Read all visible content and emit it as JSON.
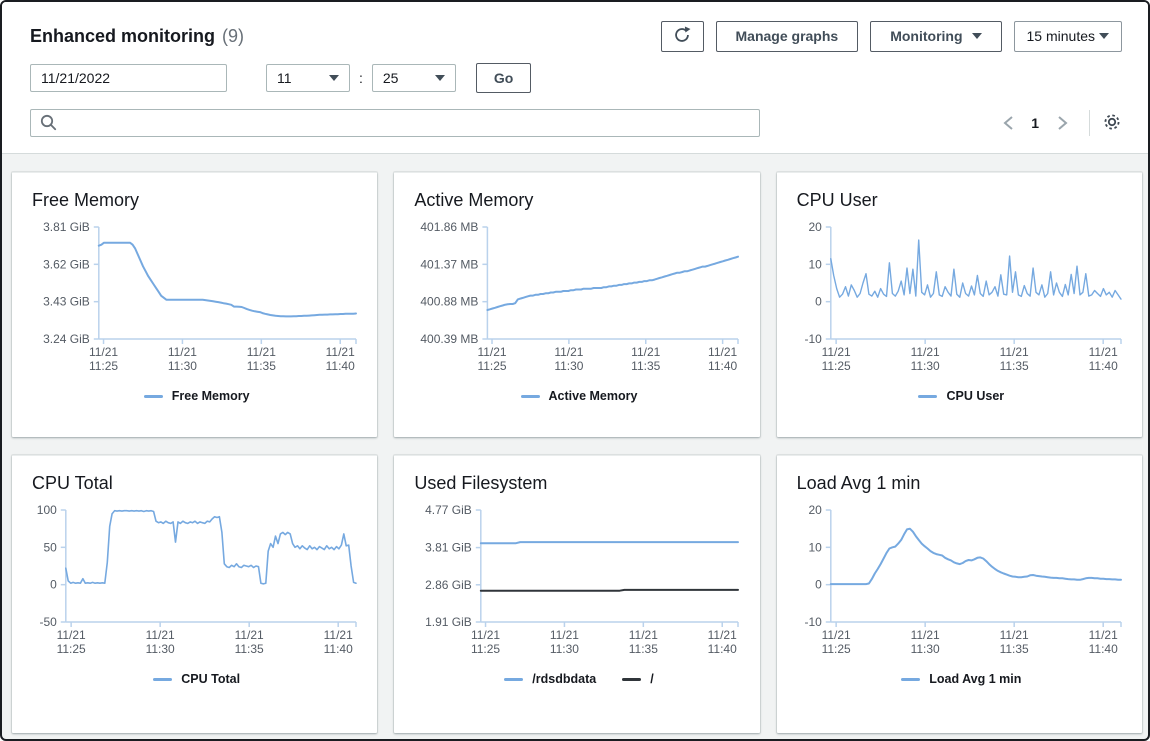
{
  "header": {
    "title": "Enhanced monitoring",
    "count": "(9)",
    "refresh_icon": "refresh-icon",
    "manage_graphs_label": "Manage graphs",
    "monitoring_label": "Monitoring",
    "time_range_label": "15 minutes",
    "date_value": "11/21/2022",
    "hour_value": "11",
    "time_separator": ":",
    "minute_value": "25",
    "go_label": "Go",
    "search_value": "",
    "pagination": {
      "page": "1"
    }
  },
  "colors": {
    "chart_line": "#76a9e0",
    "chart_axis": "#bad2ec",
    "tick_text": "#545b64",
    "root_fs_line": "#30353a",
    "button_border": "#545b64",
    "page_bg": "#f1f3f3"
  },
  "chart_data": [
    {
      "id": "free-memory",
      "type": "line",
      "title": "Free Memory",
      "ylim": [
        3.24,
        3.81
      ],
      "ytick_values": [
        3.81,
        3.62,
        3.43,
        3.24
      ],
      "ytick_labels": [
        "3.81 GiB",
        "3.62 GiB",
        "3.43 GiB",
        "3.24 GiB"
      ],
      "xlim": [
        0,
        16.3
      ],
      "xtick_values": [
        0.3,
        5.3,
        10.3,
        15.3
      ],
      "xtick_labels": [
        [
          "11/21",
          "11:25"
        ],
        [
          "11/21",
          "11:30"
        ],
        [
          "11/21",
          "11:35"
        ],
        [
          "11/21",
          "11:40"
        ]
      ],
      "legend": [
        {
          "label": "Free Memory",
          "color": "#76a9e0"
        }
      ],
      "series": [
        {
          "name": "Free Memory",
          "color": "#76a9e0",
          "width": 2,
          "values": [
            3.715,
            3.72,
            3.73,
            3.73,
            3.73,
            3.73,
            3.73,
            3.73,
            3.73,
            3.73,
            3.73,
            3.73,
            3.73,
            3.72,
            3.7,
            3.67,
            3.64,
            3.61,
            3.585,
            3.56,
            3.54,
            3.52,
            3.5,
            3.48,
            3.46,
            3.45,
            3.44,
            3.44,
            3.44,
            3.44,
            3.44,
            3.44,
            3.44,
            3.44,
            3.44,
            3.44,
            3.44,
            3.44,
            3.44,
            3.44,
            3.44,
            3.438,
            3.436,
            3.434,
            3.432,
            3.43,
            3.428,
            3.425,
            3.422,
            3.42,
            3.417,
            3.414,
            3.405,
            3.405,
            3.404,
            3.403,
            3.398,
            3.392,
            3.388,
            3.384,
            3.381,
            3.379,
            3.377,
            3.372,
            3.368,
            3.365,
            3.362,
            3.36,
            3.358,
            3.357,
            3.356,
            3.356,
            3.355,
            3.355,
            3.355,
            3.356,
            3.356,
            3.357,
            3.357,
            3.358,
            3.358,
            3.359,
            3.36,
            3.361,
            3.362,
            3.363,
            3.363,
            3.364,
            3.364,
            3.365,
            3.365,
            3.366,
            3.366,
            3.367,
            3.367,
            3.368,
            3.368,
            3.369,
            3.369,
            3.37
          ]
        }
      ]
    },
    {
      "id": "active-memory",
      "type": "line",
      "title": "Active Memory",
      "ylim": [
        400.39,
        401.86
      ],
      "ytick_values": [
        401.86,
        401.37,
        400.88,
        400.39
      ],
      "ytick_labels": [
        "401.86 MB",
        "401.37 MB",
        "400.88 MB",
        "400.39 MB"
      ],
      "xlim": [
        0,
        16.3
      ],
      "xtick_values": [
        0.3,
        5.3,
        10.3,
        15.3
      ],
      "xtick_labels": [
        [
          "11/21",
          "11:25"
        ],
        [
          "11/21",
          "11:30"
        ],
        [
          "11/21",
          "11:35"
        ],
        [
          "11/21",
          "11:40"
        ]
      ],
      "legend": [
        {
          "label": "Active Memory",
          "color": "#76a9e0"
        }
      ],
      "series": [
        {
          "name": "Active Memory",
          "color": "#76a9e0",
          "width": 2,
          "values": [
            400.77,
            400.78,
            400.79,
            400.8,
            400.81,
            400.82,
            400.83,
            400.84,
            400.845,
            400.85,
            400.85,
            400.86,
            400.91,
            400.92,
            400.93,
            400.94,
            400.95,
            400.96,
            400.96,
            400.97,
            400.97,
            400.98,
            400.98,
            400.99,
            400.99,
            401.0,
            401.0,
            401.01,
            401.01,
            401.01,
            401.02,
            401.02,
            401.02,
            401.03,
            401.03,
            401.04,
            401.04,
            401.04,
            401.05,
            401.05,
            401.05,
            401.05,
            401.06,
            401.06,
            401.06,
            401.06,
            401.07,
            401.07,
            401.08,
            401.08,
            401.09,
            401.09,
            401.1,
            401.1,
            401.11,
            401.11,
            401.12,
            401.12,
            401.13,
            401.13,
            401.14,
            401.14,
            401.15,
            401.15,
            401.16,
            401.16,
            401.17,
            401.18,
            401.19,
            401.2,
            401.21,
            401.22,
            401.23,
            401.24,
            401.25,
            401.26,
            401.26,
            401.27,
            401.28,
            401.28,
            401.29,
            401.3,
            401.31,
            401.32,
            401.33,
            401.34,
            401.34,
            401.35,
            401.36,
            401.37,
            401.38,
            401.39,
            401.4,
            401.41,
            401.42,
            401.43,
            401.44,
            401.45,
            401.46,
            401.47
          ]
        }
      ]
    },
    {
      "id": "cpu-user",
      "type": "line",
      "title": "CPU User",
      "ylim": [
        -10,
        20
      ],
      "ytick_values": [
        20,
        10,
        0,
        -10
      ],
      "ytick_labels": [
        "20",
        "10",
        "0",
        "-10"
      ],
      "xlim": [
        0,
        16.3
      ],
      "xtick_values": [
        0.3,
        5.3,
        10.3,
        15.3
      ],
      "xtick_labels": [
        [
          "11/21",
          "11:25"
        ],
        [
          "11/21",
          "11:30"
        ],
        [
          "11/21",
          "11:35"
        ],
        [
          "11/21",
          "11:40"
        ]
      ],
      "legend": [
        {
          "label": "CPU User",
          "color": "#76a9e0"
        }
      ],
      "series": [
        {
          "name": "CPU User",
          "color": "#76a9e0",
          "width": 1.4,
          "values": [
            11.5,
            7,
            3.5,
            1.2,
            2,
            4,
            1.5,
            4.5,
            3,
            1.2,
            2.2,
            5,
            7.5,
            2,
            1.5,
            2.8,
            1.2,
            3.5,
            2,
            1.4,
            10.4,
            2.2,
            1.5,
            2.8,
            5.5,
            1.8,
            9,
            2.2,
            8.7,
            1.5,
            16.5,
            2.5,
            1.8,
            4.5,
            1.2,
            2.2,
            8,
            1.8,
            1.4,
            4,
            2.5,
            1.5,
            8.7,
            2,
            1.2,
            5,
            2.2,
            1.5,
            4.2,
            1.8,
            7,
            2.2,
            1.4,
            5.5,
            1.8,
            2.5,
            4,
            1.5,
            7.2,
            2,
            1.8,
            12.2,
            2.5,
            8,
            1.8,
            1.4,
            4.3,
            2.2,
            1.5,
            9,
            2.5,
            1.8,
            4.5,
            1.2,
            2.2,
            8,
            1.8,
            5,
            2.5,
            1.4,
            4.6,
            1.8,
            7.3,
            2.2,
            9.5,
            1.8,
            2.5,
            7.5,
            1.5,
            1.8,
            3,
            2.2,
            1.4,
            3.5,
            1.8,
            2.5,
            1.2,
            3,
            1.8,
            0.7
          ]
        }
      ]
    },
    {
      "id": "cpu-total",
      "type": "line",
      "title": "CPU Total",
      "ylim": [
        -50,
        100
      ],
      "ytick_values": [
        100,
        50,
        0,
        -50
      ],
      "ytick_labels": [
        "100",
        "50",
        "0",
        "-50"
      ],
      "xlim": [
        0,
        16.3
      ],
      "xtick_values": [
        0.3,
        5.3,
        10.3,
        15.3
      ],
      "xtick_labels": [
        [
          "11/21",
          "11:25"
        ],
        [
          "11/21",
          "11:30"
        ],
        [
          "11/21",
          "11:35"
        ],
        [
          "11/21",
          "11:40"
        ]
      ],
      "legend": [
        {
          "label": "CPU Total",
          "color": "#76a9e0"
        }
      ],
      "series": [
        {
          "name": "CPU Total",
          "color": "#76a9e0",
          "width": 1.6,
          "values": [
            22,
            5,
            2,
            3,
            2,
            2.5,
            2,
            8,
            2,
            2.5,
            2,
            3,
            2,
            2.5,
            2,
            2.5,
            2,
            30,
            78,
            95,
            99,
            98.5,
            99,
            98.5,
            99,
            99,
            98.5,
            99,
            98.5,
            99,
            98.5,
            99,
            98,
            99,
            98.5,
            99,
            98,
            85,
            83,
            84,
            82,
            85,
            83,
            82,
            84,
            57,
            84,
            82,
            85,
            83,
            82,
            84,
            83,
            85,
            82,
            84,
            83,
            82,
            85,
            84,
            88,
            91,
            90,
            91,
            70,
            28,
            24,
            23,
            26,
            24,
            28,
            24,
            23,
            26,
            25,
            24,
            26,
            23,
            25,
            24,
            2,
            1,
            2,
            45,
            55,
            50,
            65,
            55,
            68,
            70,
            67,
            70,
            68,
            55,
            50,
            52,
            48,
            52,
            49,
            47,
            52,
            48,
            50,
            47,
            51,
            49,
            47,
            52,
            48,
            50,
            47,
            51,
            48,
            53,
            68,
            52,
            53,
            25,
            3,
            2
          ]
        }
      ]
    },
    {
      "id": "used-filesystem",
      "type": "line",
      "title": "Used Filesystem",
      "ylim": [
        1.91,
        4.77
      ],
      "ytick_values": [
        4.77,
        3.81,
        2.86,
        1.91
      ],
      "ytick_labels": [
        "4.77 GiB",
        "3.81 GiB",
        "2.86 GiB",
        "1.91 GiB"
      ],
      "xlim": [
        0,
        16.3
      ],
      "xtick_values": [
        0.3,
        5.3,
        10.3,
        15.3
      ],
      "xtick_labels": [
        [
          "11/21",
          "11:25"
        ],
        [
          "11/21",
          "11:30"
        ],
        [
          "11/21",
          "11:35"
        ],
        [
          "11/21",
          "11:40"
        ]
      ],
      "legend": [
        {
          "label": "/rdsdbdata",
          "color": "#76a9e0"
        },
        {
          "label": "/",
          "color": "#30353a"
        }
      ],
      "series": [
        {
          "name": "/rdsdbdata",
          "color": "#76a9e0",
          "width": 2,
          "points": [
            [
              0,
              3.92
            ],
            [
              2.2,
              3.92
            ],
            [
              2.5,
              3.95
            ],
            [
              16.3,
              3.95
            ]
          ]
        },
        {
          "name": "/",
          "color": "#30353a",
          "width": 2,
          "points": [
            [
              0,
              2.71
            ],
            [
              8.8,
              2.71
            ],
            [
              9.1,
              2.73
            ],
            [
              16.3,
              2.73
            ]
          ]
        }
      ]
    },
    {
      "id": "load-avg-1-min",
      "type": "line",
      "title": "Load Avg 1 min",
      "ylim": [
        -10,
        20
      ],
      "ytick_values": [
        20,
        10,
        0,
        -10
      ],
      "ytick_labels": [
        "20",
        "10",
        "0",
        "-10"
      ],
      "xlim": [
        0,
        16.3
      ],
      "xtick_values": [
        0.3,
        5.3,
        10.3,
        15.3
      ],
      "xtick_labels": [
        [
          "11/21",
          "11:25"
        ],
        [
          "11/21",
          "11:30"
        ],
        [
          "11/21",
          "11:35"
        ],
        [
          "11/21",
          "11:40"
        ]
      ],
      "legend": [
        {
          "label": "Load Avg 1 min",
          "color": "#76a9e0"
        }
      ],
      "series": [
        {
          "name": "Load Avg 1 min",
          "color": "#76a9e0",
          "width": 2,
          "values": [
            0.15,
            0.15,
            0.15,
            0.15,
            0.15,
            0.15,
            0.15,
            0.15,
            0.15,
            0.15,
            0.15,
            0.15,
            0.15,
            0.3,
            1.5,
            3.0,
            4.2,
            5.5,
            7.0,
            8.5,
            9.7,
            10.0,
            10.2,
            11.0,
            12.0,
            13.5,
            14.8,
            15.0,
            14.2,
            13.0,
            12.0,
            11.0,
            10.3,
            9.7,
            9.0,
            8.5,
            8.2,
            8.0,
            7.8,
            7.2,
            6.8,
            6.5,
            6.0,
            5.7,
            5.5,
            5.8,
            6.3,
            6.6,
            6.5,
            6.8,
            7.2,
            7.3,
            7.0,
            6.3,
            5.5,
            4.8,
            4.2,
            3.7,
            3.3,
            3.0,
            2.7,
            2.4,
            2.2,
            2.1,
            2.0,
            2.0,
            2.1,
            2.2,
            2.5,
            2.6,
            2.4,
            2.3,
            2.2,
            2.1,
            2.0,
            1.9,
            1.8,
            1.8,
            1.7,
            1.7,
            1.6,
            1.5,
            1.4,
            1.4,
            1.3,
            1.3,
            1.5,
            1.7,
            1.8,
            1.8,
            1.7,
            1.7,
            1.6,
            1.6,
            1.5,
            1.5,
            1.4,
            1.4,
            1.3,
            1.3
          ]
        }
      ]
    }
  ]
}
